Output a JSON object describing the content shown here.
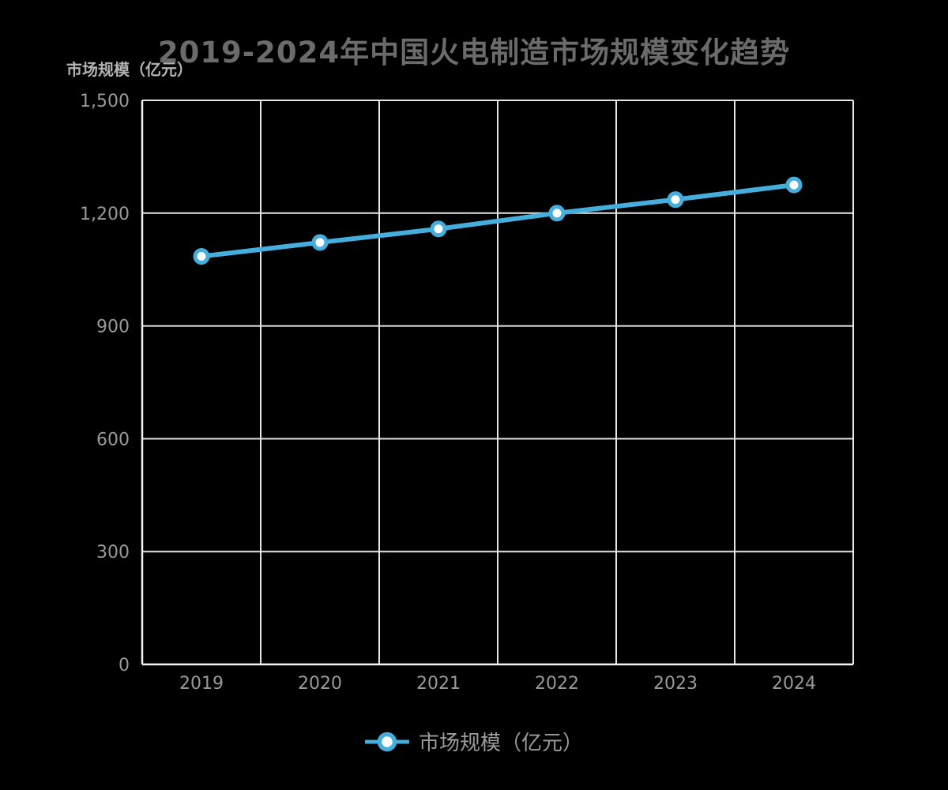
{
  "chart": {
    "title": "2019-2024年中国火电制造市场规模变化趋势",
    "y_axis_name": "市场规模（亿元）",
    "legend_label": "市场规模（亿元）"
  },
  "chart_data": {
    "type": "line",
    "title": "2019-2024年中国火电制造市场规模变化趋势",
    "categories": [
      "2019",
      "2020",
      "2021",
      "2022",
      "2023",
      "2024"
    ],
    "series": [
      {
        "name": "市场规模（亿元）",
        "values": [
          1085,
          1122,
          1158,
          1200,
          1236,
          1275
        ]
      }
    ],
    "xlabel": "",
    "ylabel": "市场规模（亿元）",
    "ylim": [
      0,
      1500
    ],
    "y_ticks": [
      0,
      300,
      600,
      900,
      1200,
      1500
    ],
    "y_tick_labels": [
      "0",
      "300",
      "600",
      "900",
      "1,200",
      "1,500"
    ],
    "grid": true,
    "legend_position": "bottom"
  },
  "colors": {
    "background": "#000000",
    "line": "#45aedd",
    "marker_fill": "#ffffff",
    "grid": "#e6e6e6",
    "axis": "#f2f2f2",
    "title_text": "#6b6b6b",
    "tick_text": "#999999",
    "axis_name_text": "#b3b3b3",
    "legend_text": "#9b9b9b"
  }
}
